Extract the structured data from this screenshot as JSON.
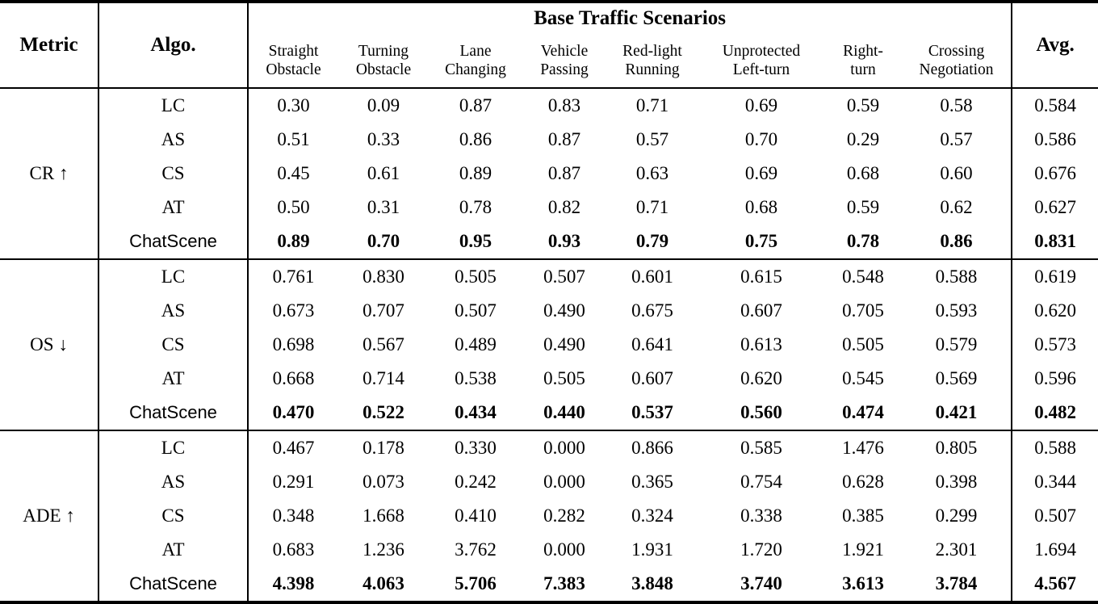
{
  "table": {
    "colors": {
      "text": "#000000",
      "background": "#ffffff",
      "rule": "#000000"
    },
    "header": {
      "metric_label": "Metric",
      "algo_label": "Algo.",
      "group_title": "Base Traffic Scenarios",
      "avg_label": "Avg.",
      "scenarios": [
        {
          "lines": [
            "Straight",
            "Obstacle"
          ]
        },
        {
          "lines": [
            "Turning",
            "Obstacle"
          ]
        },
        {
          "lines": [
            "Lane",
            "Changing"
          ]
        },
        {
          "lines": [
            "Vehicle",
            "Passing"
          ]
        },
        {
          "lines": [
            "Red-light",
            "Running"
          ]
        },
        {
          "lines": [
            "Unprotected",
            "Left-turn"
          ]
        },
        {
          "lines": [
            "Right-",
            "turn"
          ]
        },
        {
          "lines": [
            "Crossing",
            "Negotiation"
          ]
        }
      ]
    },
    "groups": [
      {
        "metric": "CR ↑",
        "rows": [
          {
            "algo": "LC",
            "highlight": false,
            "values": [
              "0.30",
              "0.09",
              "0.87",
              "0.83",
              "0.71",
              "0.69",
              "0.59",
              "0.58"
            ],
            "avg": "0.584"
          },
          {
            "algo": "AS",
            "highlight": false,
            "values": [
              "0.51",
              "0.33",
              "0.86",
              "0.87",
              "0.57",
              "0.70",
              "0.29",
              "0.57"
            ],
            "avg": "0.586"
          },
          {
            "algo": "CS",
            "highlight": false,
            "values": [
              "0.45",
              "0.61",
              "0.89",
              "0.87",
              "0.63",
              "0.69",
              "0.68",
              "0.60"
            ],
            "avg": "0.676"
          },
          {
            "algo": "AT",
            "highlight": false,
            "values": [
              "0.50",
              "0.31",
              "0.78",
              "0.82",
              "0.71",
              "0.68",
              "0.59",
              "0.62"
            ],
            "avg": "0.627"
          },
          {
            "algo": "ChatScene",
            "highlight": true,
            "values": [
              "0.89",
              "0.70",
              "0.95",
              "0.93",
              "0.79",
              "0.75",
              "0.78",
              "0.86"
            ],
            "avg": "0.831"
          }
        ]
      },
      {
        "metric": "OS ↓",
        "rows": [
          {
            "algo": "LC",
            "highlight": false,
            "values": [
              "0.761",
              "0.830",
              "0.505",
              "0.507",
              "0.601",
              "0.615",
              "0.548",
              "0.588"
            ],
            "avg": "0.619"
          },
          {
            "algo": "AS",
            "highlight": false,
            "values": [
              "0.673",
              "0.707",
              "0.507",
              "0.490",
              "0.675",
              "0.607",
              "0.705",
              "0.593"
            ],
            "avg": "0.620"
          },
          {
            "algo": "CS",
            "highlight": false,
            "values": [
              "0.698",
              "0.567",
              "0.489",
              "0.490",
              "0.641",
              "0.613",
              "0.505",
              "0.579"
            ],
            "avg": "0.573"
          },
          {
            "algo": "AT",
            "highlight": false,
            "values": [
              "0.668",
              "0.714",
              "0.538",
              "0.505",
              "0.607",
              "0.620",
              "0.545",
              "0.569"
            ],
            "avg": "0.596"
          },
          {
            "algo": "ChatScene",
            "highlight": true,
            "values": [
              "0.470",
              "0.522",
              "0.434",
              "0.440",
              "0.537",
              "0.560",
              "0.474",
              "0.421"
            ],
            "avg": "0.482"
          }
        ]
      },
      {
        "metric": "ADE ↑",
        "rows": [
          {
            "algo": "LC",
            "highlight": false,
            "values": [
              "0.467",
              "0.178",
              "0.330",
              "0.000",
              "0.866",
              "0.585",
              "1.476",
              "0.805"
            ],
            "avg": "0.588"
          },
          {
            "algo": "AS",
            "highlight": false,
            "values": [
              "0.291",
              "0.073",
              "0.242",
              "0.000",
              "0.365",
              "0.754",
              "0.628",
              "0.398"
            ],
            "avg": "0.344"
          },
          {
            "algo": "CS",
            "highlight": false,
            "values": [
              "0.348",
              "1.668",
              "0.410",
              "0.282",
              "0.324",
              "0.338",
              "0.385",
              "0.299"
            ],
            "avg": "0.507"
          },
          {
            "algo": "AT",
            "highlight": false,
            "values": [
              "0.683",
              "1.236",
              "3.762",
              "0.000",
              "1.931",
              "1.720",
              "1.921",
              "2.301"
            ],
            "avg": "1.694"
          },
          {
            "algo": "ChatScene",
            "highlight": true,
            "values": [
              "4.398",
              "4.063",
              "5.706",
              "7.383",
              "3.848",
              "3.740",
              "3.613",
              "3.784"
            ],
            "avg": "4.567"
          }
        ]
      }
    ]
  }
}
